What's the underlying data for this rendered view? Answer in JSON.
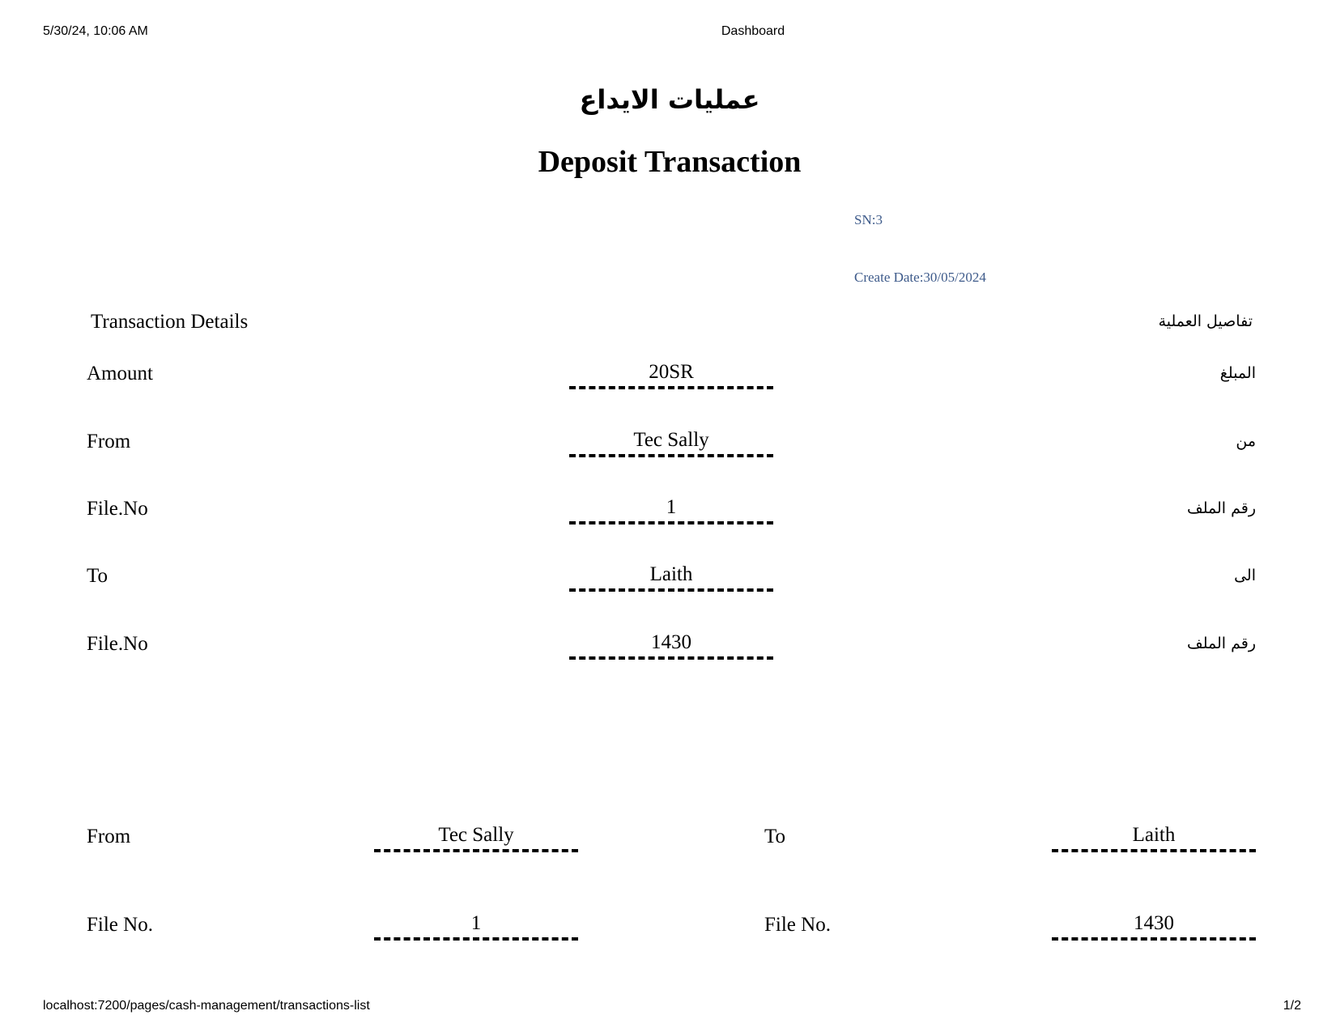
{
  "browser_header": {
    "datetime": "5/30/24, 10:06 AM",
    "title": "Dashboard"
  },
  "title_ar": "عمليات الايداع",
  "title_en": "Deposit Transaction",
  "sn": "SN:3",
  "create_date": "Create Date:30/05/2024",
  "section": {
    "label_en": "Transaction Details",
    "label_ar": "تفاصيل العملية"
  },
  "details": [
    {
      "label_en": "Amount",
      "value": "20SR",
      "label_ar": "المبلغ"
    },
    {
      "label_en": "From",
      "value": "Tec Sally",
      "label_ar": "من"
    },
    {
      "label_en": "File.No",
      "value": "1",
      "label_ar": "رقم الملف"
    },
    {
      "label_en": "To",
      "value": "Laith",
      "label_ar": "الى"
    },
    {
      "label_en": "File.No",
      "value": "1430",
      "label_ar": "رقم الملف"
    }
  ],
  "signature": {
    "from_label": "From",
    "from_value": "Tec Sally",
    "to_label": "To",
    "to_value": "Laith",
    "from_file_label": "File No.",
    "from_file_value": "1",
    "to_file_label": "File No.",
    "to_file_value": "1430"
  },
  "browser_footer": {
    "url": "localhost:7200/pages/cash-management/transactions-list",
    "page": "1/2"
  }
}
